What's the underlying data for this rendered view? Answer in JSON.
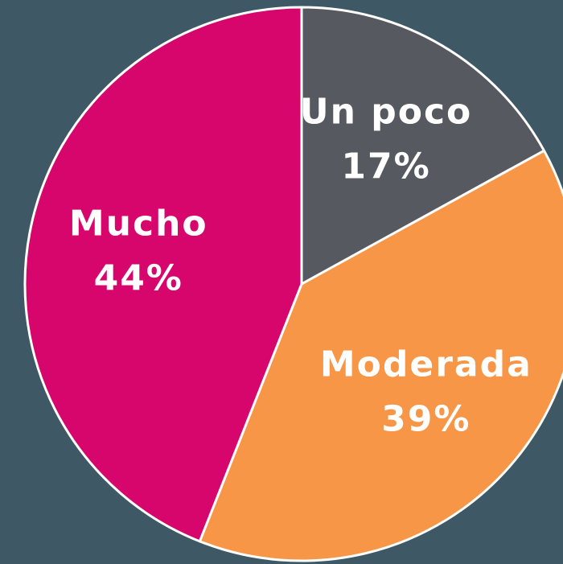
{
  "chart_data": {
    "type": "pie",
    "categories": [
      "Un poco",
      "Moderada",
      "Mucho"
    ],
    "values": [
      17,
      39,
      44
    ],
    "value_labels": [
      "17%",
      "39%",
      "44%"
    ],
    "colors": [
      "#565a60",
      "#f79646",
      "#d6066c"
    ]
  }
}
